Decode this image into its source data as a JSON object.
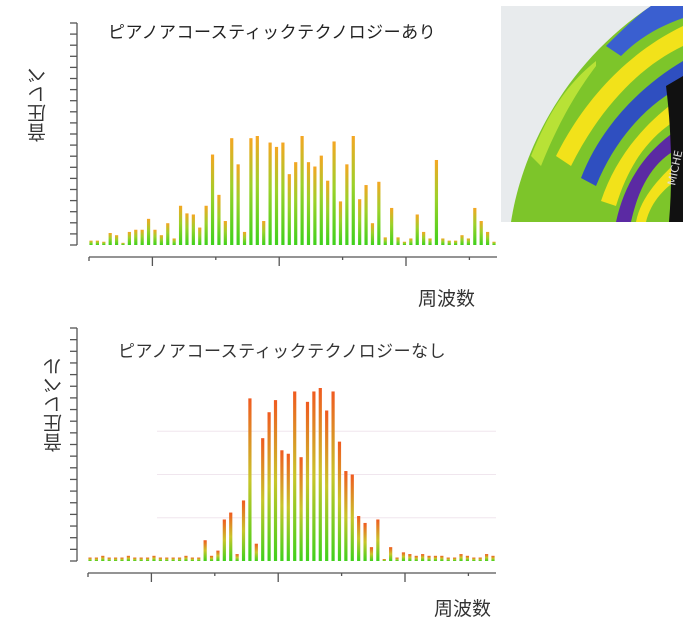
{
  "chart_data": [
    {
      "type": "bar",
      "title": "ピアノアコースティックテクノロジーあり",
      "xlabel": "周波数",
      "ylabel": "音圧レベ",
      "grid": false,
      "legend": null,
      "ylim": [
        0,
        100
      ],
      "x_ticks_labeled": false,
      "y_ticks_labeled": false,
      "color_gradient": [
        "#3fd11c",
        "#f5a623"
      ],
      "values": [
        4,
        4,
        3,
        11,
        9,
        2,
        12,
        14,
        14,
        24,
        14,
        9,
        20,
        6,
        36,
        29,
        28,
        16,
        36,
        83,
        46,
        22,
        98,
        74,
        12,
        98,
        100,
        22,
        94,
        90,
        94,
        65,
        76,
        100,
        76,
        72,
        82,
        59,
        95,
        40,
        74,
        100,
        42,
        55,
        20,
        58,
        7,
        34,
        7,
        3,
        6,
        28,
        12,
        6,
        78,
        6,
        4,
        4,
        9,
        6,
        34,
        22,
        12,
        3
      ]
    },
    {
      "type": "bar",
      "title": "ピアノアコースティックテクノロジーなし",
      "xlabel": "周波数",
      "ylabel": "音圧レベル",
      "grid": true,
      "legend": null,
      "ylim": [
        0,
        100
      ],
      "x_ticks_labeled": false,
      "y_ticks_labeled": false,
      "color_gradient": [
        "#3fd11c",
        "#f05a20"
      ],
      "values": [
        2,
        2,
        3,
        2,
        2,
        2,
        3,
        2,
        2,
        2,
        3,
        2,
        2,
        2,
        2,
        3,
        2,
        2,
        12,
        3,
        6,
        24,
        28,
        4,
        35,
        94,
        10,
        71,
        86,
        93,
        64,
        62,
        98,
        60,
        92,
        98,
        100,
        87,
        98,
        69,
        52,
        50,
        26,
        22,
        8,
        24,
        1,
        8,
        2,
        5,
        4,
        3,
        4,
        3,
        3,
        3,
        2,
        2,
        4,
        3,
        2,
        2,
        4,
        3
      ]
    }
  ],
  "side_image": {
    "description": "tire-tread-closeup",
    "brand_text": "MICHE"
  }
}
